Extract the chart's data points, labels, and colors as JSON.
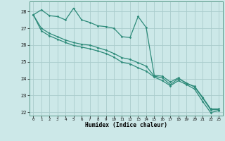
{
  "xlabel": "Humidex (Indice chaleur)",
  "xlim": [
    -0.5,
    23.5
  ],
  "ylim": [
    21.8,
    28.6
  ],
  "yticks": [
    22,
    23,
    24,
    25,
    26,
    27,
    28
  ],
  "xticks": [
    0,
    1,
    2,
    3,
    4,
    5,
    6,
    7,
    8,
    9,
    10,
    11,
    12,
    13,
    14,
    15,
    16,
    17,
    18,
    19,
    20,
    21,
    22,
    23
  ],
  "bg_color": "#cce8e8",
  "grid_color": "#aacccc",
  "line_color": "#2e8b7a",
  "line1": [
    27.8,
    28.1,
    27.75,
    27.7,
    27.5,
    28.2,
    27.5,
    27.35,
    27.15,
    27.1,
    27.0,
    26.5,
    26.45,
    27.7,
    27.05,
    24.2,
    24.15,
    23.8,
    24.05,
    23.7,
    23.55,
    22.9,
    22.2,
    22.2
  ],
  "line2": [
    27.8,
    27.0,
    26.7,
    26.5,
    26.3,
    26.15,
    26.05,
    26.0,
    25.85,
    25.7,
    25.5,
    25.25,
    25.15,
    24.95,
    24.75,
    24.15,
    24.05,
    23.65,
    24.0,
    23.75,
    23.5,
    22.85,
    22.15,
    22.15
  ],
  "line3": [
    27.8,
    26.85,
    26.55,
    26.35,
    26.15,
    25.98,
    25.88,
    25.78,
    25.65,
    25.5,
    25.28,
    24.98,
    24.88,
    24.65,
    24.45,
    24.1,
    23.88,
    23.58,
    23.88,
    23.65,
    23.38,
    22.65,
    21.98,
    22.1
  ]
}
